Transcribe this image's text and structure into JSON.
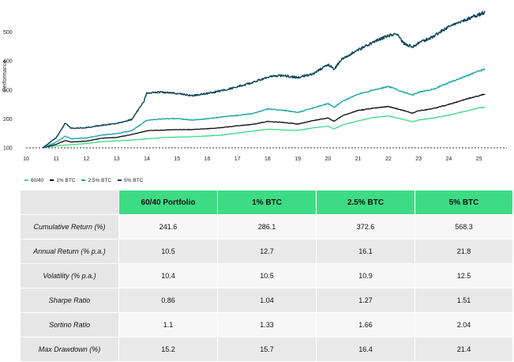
{
  "chart_data": {
    "type": "line",
    "xlabel": "",
    "ylabel": "Performance",
    "x_ticks": [
      "10",
      "11",
      "12",
      "13",
      "14",
      "15",
      "16",
      "17",
      "18",
      "19",
      "20",
      "21",
      "22",
      "23",
      "24",
      "25"
    ],
    "x_range": [
      2010,
      2025.35
    ],
    "y_ticks": [
      "100",
      "200",
      "300",
      "400",
      "500"
    ],
    "ylim": [
      100,
      600
    ],
    "baseline": 100,
    "legend_position": "bottom-left",
    "series": [
      {
        "name": "60/40",
        "color": "#3ddc84",
        "points": [
          [
            2010.55,
            100
          ],
          [
            2011.0,
            107
          ],
          [
            2011.5,
            111
          ],
          [
            2012.0,
            115
          ],
          [
            2012.5,
            121
          ],
          [
            2013.0,
            124
          ],
          [
            2013.5,
            127
          ],
          [
            2014.0,
            131
          ],
          [
            2014.5,
            135
          ],
          [
            2015.0,
            137
          ],
          [
            2015.5,
            138
          ],
          [
            2016.0,
            141
          ],
          [
            2016.5,
            144
          ],
          [
            2017.0,
            151
          ],
          [
            2017.5,
            158
          ],
          [
            2018.0,
            164
          ],
          [
            2018.5,
            162
          ],
          [
            2019.0,
            160
          ],
          [
            2019.5,
            169
          ],
          [
            2020.0,
            175
          ],
          [
            2020.2,
            165
          ],
          [
            2020.5,
            180
          ],
          [
            2021.0,
            193
          ],
          [
            2021.5,
            205
          ],
          [
            2022.0,
            210
          ],
          [
            2022.5,
            198
          ],
          [
            2022.8,
            190
          ],
          [
            2023.0,
            196
          ],
          [
            2023.5,
            203
          ],
          [
            2024.0,
            213
          ],
          [
            2024.5,
            225
          ],
          [
            2025.0,
            238
          ],
          [
            2025.2,
            240
          ]
        ]
      },
      {
        "name": "1% BTC",
        "color": "#111111",
        "points": [
          [
            2010.55,
            100
          ],
          [
            2011.0,
            112
          ],
          [
            2011.3,
            125
          ],
          [
            2011.5,
            120
          ],
          [
            2012.0,
            123
          ],
          [
            2012.5,
            133
          ],
          [
            2013.0,
            136
          ],
          [
            2013.5,
            146
          ],
          [
            2014.0,
            159
          ],
          [
            2014.5,
            161
          ],
          [
            2015.0,
            163
          ],
          [
            2015.5,
            163
          ],
          [
            2016.0,
            166
          ],
          [
            2016.5,
            170
          ],
          [
            2017.0,
            176
          ],
          [
            2017.5,
            181
          ],
          [
            2018.0,
            191
          ],
          [
            2018.5,
            188
          ],
          [
            2019.0,
            182
          ],
          [
            2019.5,
            194
          ],
          [
            2020.0,
            203
          ],
          [
            2020.2,
            192
          ],
          [
            2020.5,
            212
          ],
          [
            2021.0,
            229
          ],
          [
            2021.5,
            237
          ],
          [
            2022.0,
            243
          ],
          [
            2022.5,
            229
          ],
          [
            2022.8,
            220
          ],
          [
            2023.0,
            228
          ],
          [
            2023.5,
            236
          ],
          [
            2024.0,
            250
          ],
          [
            2024.5,
            266
          ],
          [
            2025.0,
            280
          ],
          [
            2025.2,
            286
          ]
        ]
      },
      {
        "name": "2.5% BTC",
        "color": "#18a5a8",
        "points": [
          [
            2010.55,
            100
          ],
          [
            2011.0,
            120
          ],
          [
            2011.3,
            140
          ],
          [
            2011.5,
            131
          ],
          [
            2012.0,
            134
          ],
          [
            2012.5,
            144
          ],
          [
            2013.0,
            149
          ],
          [
            2013.5,
            159
          ],
          [
            2014.0,
            195
          ],
          [
            2014.5,
            200
          ],
          [
            2015.0,
            201
          ],
          [
            2015.5,
            196
          ],
          [
            2016.0,
            200
          ],
          [
            2016.5,
            207
          ],
          [
            2017.0,
            212
          ],
          [
            2017.5,
            218
          ],
          [
            2018.0,
            234
          ],
          [
            2018.5,
            230
          ],
          [
            2019.0,
            222
          ],
          [
            2019.5,
            238
          ],
          [
            2020.0,
            253
          ],
          [
            2020.2,
            240
          ],
          [
            2020.5,
            262
          ],
          [
            2021.0,
            285
          ],
          [
            2021.5,
            300
          ],
          [
            2022.0,
            312
          ],
          [
            2022.5,
            293
          ],
          [
            2022.8,
            282
          ],
          [
            2023.0,
            292
          ],
          [
            2023.5,
            303
          ],
          [
            2024.0,
            325
          ],
          [
            2024.5,
            345
          ],
          [
            2025.0,
            366
          ],
          [
            2025.2,
            372
          ]
        ]
      },
      {
        "name": "5% BTC",
        "color": "#0d4458",
        "points": [
          [
            2010.55,
            100
          ],
          [
            2011.0,
            135
          ],
          [
            2011.3,
            185
          ],
          [
            2011.5,
            167
          ],
          [
            2012.0,
            170
          ],
          [
            2012.5,
            178
          ],
          [
            2013.0,
            184
          ],
          [
            2013.5,
            198
          ],
          [
            2013.9,
            260
          ],
          [
            2014.0,
            290
          ],
          [
            2014.5,
            293
          ],
          [
            2015.0,
            288
          ],
          [
            2015.5,
            280
          ],
          [
            2016.0,
            288
          ],
          [
            2016.5,
            298
          ],
          [
            2017.0,
            311
          ],
          [
            2017.5,
            325
          ],
          [
            2018.0,
            345
          ],
          [
            2018.5,
            350
          ],
          [
            2019.0,
            343
          ],
          [
            2019.5,
            356
          ],
          [
            2020.0,
            387
          ],
          [
            2020.2,
            372
          ],
          [
            2020.5,
            410
          ],
          [
            2021.0,
            438
          ],
          [
            2021.5,
            465
          ],
          [
            2022.0,
            488
          ],
          [
            2022.3,
            492
          ],
          [
            2022.5,
            462
          ],
          [
            2022.8,
            448
          ],
          [
            2023.0,
            462
          ],
          [
            2023.5,
            485
          ],
          [
            2024.0,
            520
          ],
          [
            2024.5,
            540
          ],
          [
            2025.0,
            560
          ],
          [
            2025.2,
            568
          ]
        ]
      }
    ]
  },
  "legend": {
    "items": [
      {
        "label": "60/40",
        "color": "#3ddc84"
      },
      {
        "label": "1% BTC",
        "color": "#111111"
      },
      {
        "label": "2.5% BTC",
        "color": "#18a5a8"
      },
      {
        "label": "5% BTC",
        "color": "#0d4458"
      }
    ]
  },
  "table": {
    "headers": [
      "60/40 Portfolio",
      "1% BTC",
      "2.5% BTC",
      "5% BTC"
    ],
    "rows": [
      {
        "label": "Cumulative Return (%)",
        "values": [
          "241.6",
          "286.1",
          "372.6",
          "568.3"
        ]
      },
      {
        "label": "Annual Return (% p.a.)",
        "values": [
          "10.5",
          "12.7",
          "16.1",
          "21.8"
        ]
      },
      {
        "label": "Volatility (% p.a.)",
        "values": [
          "10.4",
          "10.5",
          "10.9",
          "12.5"
        ]
      },
      {
        "label": "Sharpe Ratio",
        "values": [
          "0.86",
          "1.04",
          "1.27",
          "1.51"
        ]
      },
      {
        "label": "Sortino Ratio",
        "values": [
          "1.1",
          "1.33",
          "1.66",
          "2.04"
        ]
      },
      {
        "label": "Max Drawdown (%)",
        "values": [
          "15.2",
          "15.7",
          "16.4",
          "21.4"
        ]
      }
    ]
  }
}
